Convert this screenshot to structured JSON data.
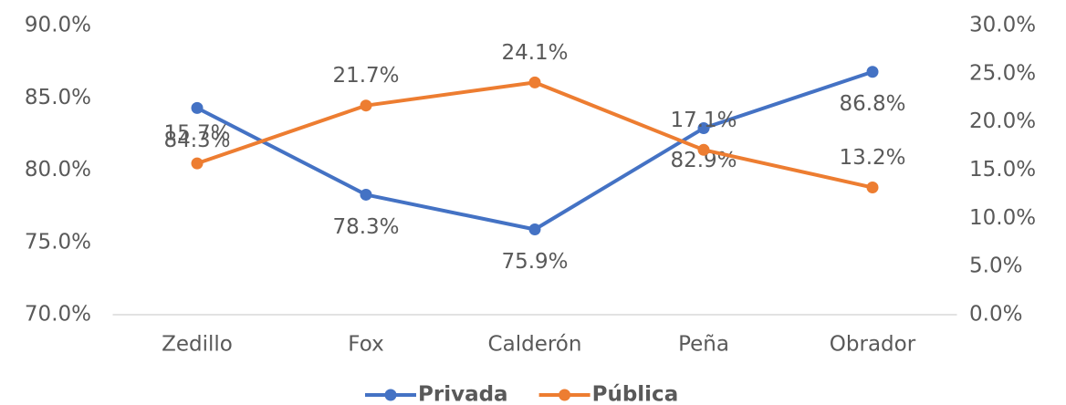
{
  "chart_data": {
    "type": "line",
    "categories": [
      "Zedillo",
      "Fox",
      "Calderón",
      "Peña",
      "Obrador"
    ],
    "series": [
      {
        "name": "Privada",
        "color": "#4472c4",
        "values": [
          84.3,
          78.3,
          75.9,
          82.9,
          86.8
        ],
        "value_labels": [
          "84.3%",
          "78.3%",
          "75.9%",
          "82.9%",
          "86.8%"
        ]
      },
      {
        "name": "Pública",
        "color": "#ed7d31",
        "axis": "y2",
        "values": [
          15.7,
          21.7,
          24.1,
          17.1,
          13.2
        ],
        "value_labels": [
          "15.7%",
          "21.7%",
          "24.1%",
          "17.1%",
          "13.2%"
        ]
      }
    ],
    "ylim": [
      70,
      90
    ],
    "yticks": [
      {
        "value": 70,
        "label": "70.0%"
      },
      {
        "value": 75,
        "label": "75.0%"
      },
      {
        "value": 80,
        "label": "80.0%"
      },
      {
        "value": 85,
        "label": "85.0%"
      },
      {
        "value": 90,
        "label": "90.0%"
      }
    ],
    "y2lim": [
      0,
      30
    ],
    "y2ticks": [
      {
        "value": 0,
        "label": "0.0%"
      },
      {
        "value": 5,
        "label": "5.0%"
      },
      {
        "value": 10,
        "label": "10.0%"
      },
      {
        "value": 15,
        "label": "15.0%"
      },
      {
        "value": 20,
        "label": "20.0%"
      },
      {
        "value": 25,
        "label": "25.0%"
      },
      {
        "value": 30,
        "label": "30.0%"
      }
    ],
    "legend": "bottom"
  }
}
